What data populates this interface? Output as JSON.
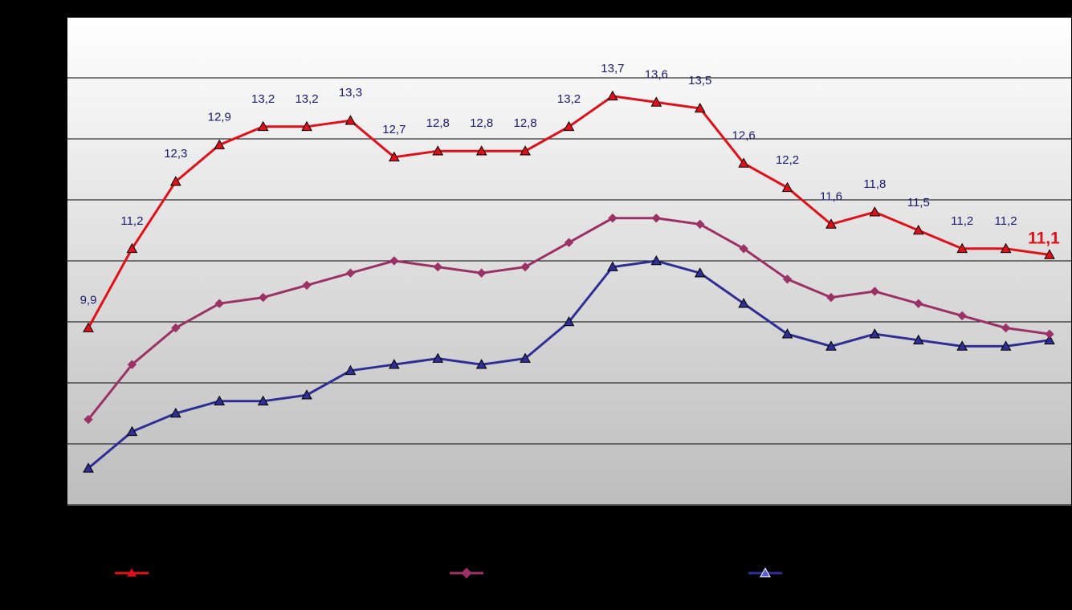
{
  "chart_data": {
    "type": "line",
    "x_count": 23,
    "ylim": [
      5,
      15
    ],
    "grid": true,
    "legend_position": "bottom",
    "series": [
      {
        "color": "#e0101a",
        "marker": "triangle",
        "values": [
          9.9,
          11.2,
          12.3,
          12.9,
          13.2,
          13.2,
          13.3,
          12.7,
          12.8,
          12.8,
          12.8,
          13.2,
          13.7,
          13.6,
          13.5,
          12.6,
          12.2,
          11.6,
          11.8,
          11.5,
          11.2,
          11.2,
          11.1
        ],
        "labels": [
          "9,9",
          "11,2",
          "12,3",
          "12,9",
          "13,2",
          "13,2",
          "13,3",
          "12,7",
          "12,8",
          "12,8",
          "12,8",
          "13,2",
          "13,7",
          "13,6",
          "13,5",
          "12,6",
          "12,2",
          "11,6",
          "11,8",
          "11,5",
          "11,2",
          "11,2",
          "11,1"
        ]
      },
      {
        "color": "#9b3165",
        "marker": "diamond",
        "values": [
          8.4,
          9.3,
          9.9,
          10.3,
          10.4,
          10.6,
          10.8,
          11.0,
          10.9,
          10.8,
          10.9,
          11.3,
          11.7,
          11.7,
          11.6,
          11.2,
          10.7,
          10.4,
          10.5,
          10.3,
          10.1,
          9.9,
          9.8
        ]
      },
      {
        "color": "#2e2e94",
        "marker": "triangle",
        "values": [
          7.6,
          8.2,
          8.5,
          8.7,
          8.7,
          8.8,
          9.2,
          9.3,
          9.4,
          9.3,
          9.4,
          10.0,
          10.9,
          11.0,
          10.8,
          10.3,
          9.8,
          9.6,
          9.8,
          9.7,
          9.6,
          9.6,
          9.7
        ]
      }
    ]
  }
}
